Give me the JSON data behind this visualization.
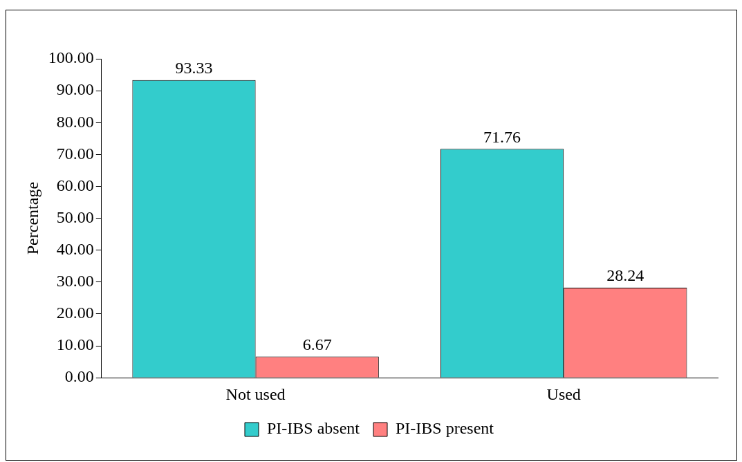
{
  "chart_data": {
    "type": "bar",
    "ylabel": "Percentage",
    "categories": [
      "Not used",
      "Used"
    ],
    "series": [
      {
        "name": "PI-IBS absent",
        "color": "#33cccc",
        "values": [
          93.33,
          71.76
        ]
      },
      {
        "name": "PI-IBS present",
        "color": "#ff8080",
        "values": [
          6.67,
          28.24
        ]
      }
    ],
    "ylim": [
      0,
      100
    ],
    "yticks": [
      {
        "value": 0,
        "label": "0.00"
      },
      {
        "value": 10,
        "label": "10.00"
      },
      {
        "value": 20,
        "label": "20.00"
      },
      {
        "value": 30,
        "label": "30.00"
      },
      {
        "value": 40,
        "label": "40.00"
      },
      {
        "value": 50,
        "label": "50.00"
      },
      {
        "value": 60,
        "label": "60.00"
      },
      {
        "value": 70,
        "label": "70.00"
      },
      {
        "value": 80,
        "label": "80.00"
      },
      {
        "value": 90,
        "label": "90.00"
      },
      {
        "value": 100,
        "label": "100.00"
      }
    ],
    "data_labels": true,
    "legend": "bottom",
    "grid": false
  }
}
